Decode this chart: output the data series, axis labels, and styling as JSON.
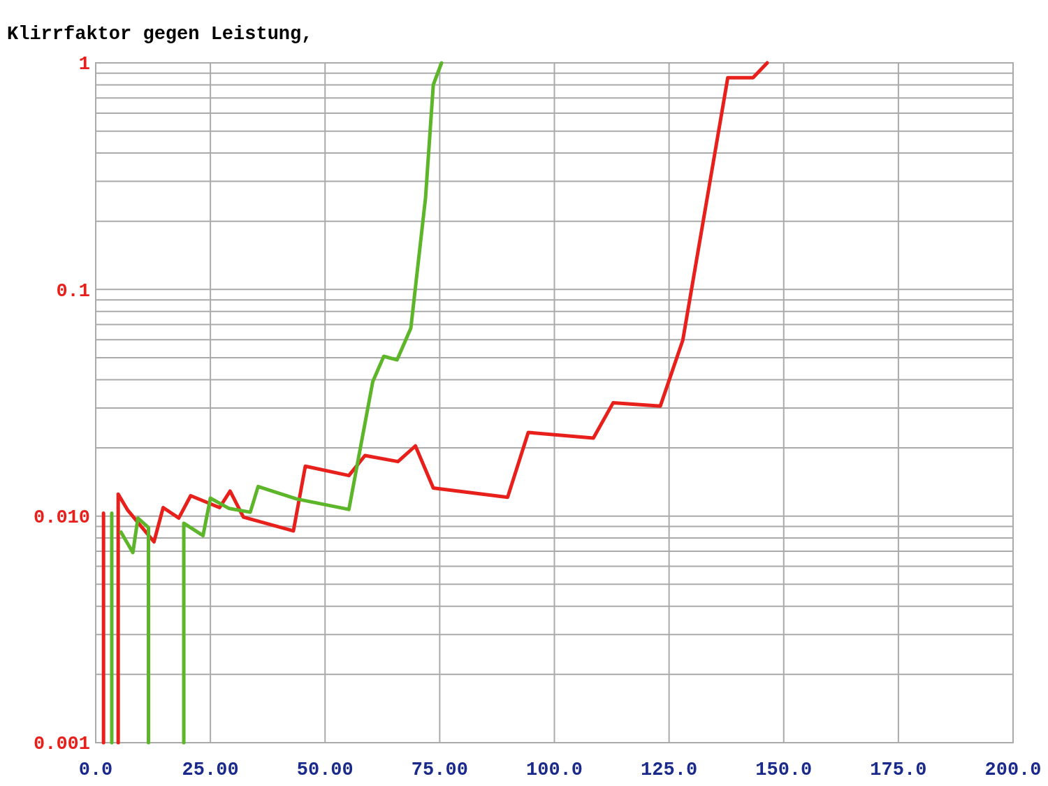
{
  "chart_data": {
    "type": "line",
    "title": "Klirrfaktor gegen Leistung,",
    "log": "y",
    "grid": true,
    "line_style": "solid",
    "xlim": [
      0,
      200
    ],
    "xticks": [
      {
        "value": 0,
        "label": "0.0"
      },
      {
        "value": 25,
        "label": "25.00"
      },
      {
        "value": 50,
        "label": "50.00"
      },
      {
        "value": 75,
        "label": "75.00"
      },
      {
        "value": 100,
        "label": "100.0"
      },
      {
        "value": 125,
        "label": "125.0"
      },
      {
        "value": 150,
        "label": "150.0"
      },
      {
        "value": 175,
        "label": "175.0"
      },
      {
        "value": 200,
        "label": "200.0"
      }
    ],
    "ylim": [
      0.001,
      1
    ],
    "yticks": [
      0.001,
      {
        "value": 0.002,
        "label": null
      },
      {
        "value": 0.003,
        "label": null
      },
      {
        "value": 0.004,
        "label": null
      },
      {
        "value": 0.005,
        "label": null
      },
      {
        "value": 0.006,
        "label": null
      },
      {
        "value": 0.007,
        "label": null
      },
      {
        "value": 0.008,
        "label": null
      },
      {
        "value": 0.009,
        "label": null
      },
      {
        "value": 0.01,
        "label": "0.010"
      },
      {
        "value": 0.02,
        "label": null
      },
      {
        "value": 0.03,
        "label": null
      },
      {
        "value": 0.04,
        "label": null
      },
      {
        "value": 0.05,
        "label": null
      },
      {
        "value": 0.06,
        "label": null
      },
      {
        "value": 0.07,
        "label": null
      },
      {
        "value": 0.08,
        "label": null
      },
      {
        "value": 0.09,
        "label": null
      },
      0.1,
      {
        "value": 0.2,
        "label": null
      },
      {
        "value": 0.3,
        "label": null
      },
      {
        "value": 0.4,
        "label": null
      },
      {
        "value": 0.5,
        "label": null
      },
      {
        "value": 0.6,
        "label": null
      },
      {
        "value": 0.7,
        "label": null
      },
      {
        "value": 0.8,
        "label": null
      },
      {
        "value": 0.9,
        "label": null
      },
      1
    ],
    "series": [
      {
        "color": "#e8201c",
        "x": [
          1.7,
          1.7,
          3.3,
          4.9,
          4.9,
          7.0,
          12.7,
          14.7,
          18.1,
          20.7,
          27.0,
          29.3,
          32.2,
          43.1,
          45.7,
          55.2,
          58.7,
          65.9,
          69.7,
          73.6,
          89.8,
          94.3,
          108.5,
          112.8,
          123.1,
          128.0,
          137.8,
          143.3,
          146.4
        ],
        "values": [
          0.001,
          0.0103,
          null,
          0.001,
          0.0125,
          0.0106,
          0.0077,
          0.0109,
          0.0098,
          0.0123,
          0.0109,
          0.0129,
          0.0099,
          0.0086,
          0.0166,
          0.0151,
          0.0185,
          0.0174,
          0.0204,
          0.0133,
          0.0121,
          0.0234,
          0.0221,
          0.0316,
          0.0306,
          0.0598,
          0.86,
          0.86,
          1.0
        ]
      },
      {
        "color": "#5db52a",
        "x": [
          3.5,
          3.5,
          4.5,
          5.5,
          8.1,
          9.2,
          11.5,
          11.5,
          15.0,
          19.2,
          19.2,
          23.4,
          25.0,
          29.1,
          33.7,
          35.4,
          43.8,
          55.2,
          60.4,
          62.8,
          65.7,
          68.7,
          71.9,
          73.6,
          75.4
        ],
        "values": [
          0.001,
          0.0103,
          null,
          0.0085,
          0.0069,
          0.0098,
          0.0089,
          0.001,
          null,
          0.001,
          0.0093,
          0.0082,
          0.012,
          0.0108,
          0.0104,
          0.0135,
          0.0119,
          0.0107,
          0.0392,
          0.0507,
          0.0489,
          0.0675,
          0.253,
          0.8,
          1.0
        ]
      }
    ]
  }
}
